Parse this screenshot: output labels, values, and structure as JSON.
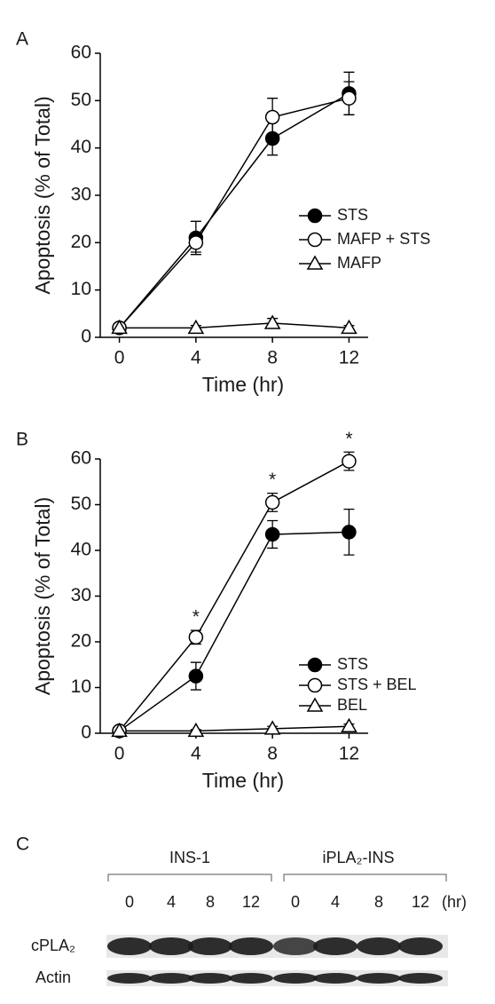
{
  "chart_data": [
    {
      "type": "line",
      "panel": "A",
      "x_label": "Time (hr)",
      "y_label": "Apoptosis (% of Total)",
      "x": [
        0,
        4,
        8,
        12
      ],
      "xlim": [
        -1,
        13
      ],
      "xticks": [
        0,
        4,
        8,
        12
      ],
      "ylim": [
        0,
        60
      ],
      "yticks": [
        0,
        10,
        20,
        30,
        40,
        50,
        60
      ],
      "legend": "right",
      "series": [
        {
          "name": "STS",
          "color": "#000000",
          "marker": "circle",
          "fill": "#000000",
          "values": [
            2,
            21,
            42,
            51.5
          ],
          "errors": [
            1,
            3.5,
            3.5,
            4.5
          ]
        },
        {
          "name": "MAFP + STS",
          "color": "#000000",
          "marker": "circle",
          "fill": "#ffffff",
          "values": [
            2,
            20,
            46.5,
            50.5
          ],
          "errors": [
            1,
            2,
            4,
            3.5
          ]
        },
        {
          "name": "MAFP",
          "color": "#000000",
          "marker": "triangle",
          "fill": "#ffffff",
          "values": [
            2,
            2,
            3,
            2
          ],
          "errors": [
            0.5,
            0.5,
            1,
            0.5
          ]
        }
      ]
    },
    {
      "type": "line",
      "panel": "B",
      "x_label": "Time (hr)",
      "y_label": "Apoptosis (% of Total)",
      "x": [
        0,
        4,
        8,
        12
      ],
      "xlim": [
        -1,
        13
      ],
      "xticks": [
        0,
        4,
        8,
        12
      ],
      "ylim": [
        0,
        60
      ],
      "yticks": [
        0,
        10,
        20,
        30,
        40,
        50,
        60
      ],
      "legend": "right",
      "series": [
        {
          "name": "STS",
          "color": "#000000",
          "marker": "circle",
          "fill": "#000000",
          "values": [
            0.5,
            12.5,
            43.5,
            44
          ],
          "errors": [
            0.5,
            3,
            3,
            5
          ]
        },
        {
          "name": "STS + BEL",
          "color": "#000000",
          "marker": "circle",
          "fill": "#ffffff",
          "values": [
            0.5,
            21,
            50.5,
            59.5
          ],
          "errors": [
            0.5,
            1.5,
            2,
            2
          ]
        },
        {
          "name": "BEL",
          "color": "#000000",
          "marker": "triangle",
          "fill": "#ffffff",
          "values": [
            0.5,
            0.5,
            1,
            1.5
          ],
          "errors": [
            0.3,
            0.3,
            0.5,
            0.5
          ]
        }
      ],
      "annotations": [
        {
          "x": 4,
          "text": "*"
        },
        {
          "x": 8,
          "text": "*"
        },
        {
          "x": 12,
          "text": "*"
        }
      ]
    }
  ],
  "panel_c": {
    "label": "C",
    "groups": [
      "INS-1",
      "iPLA₂-INS"
    ],
    "lanes": [
      0,
      4,
      8,
      12,
      0,
      4,
      8,
      12
    ],
    "unit": "(hr)",
    "rows": [
      "cPLA₂",
      "Actin"
    ]
  }
}
